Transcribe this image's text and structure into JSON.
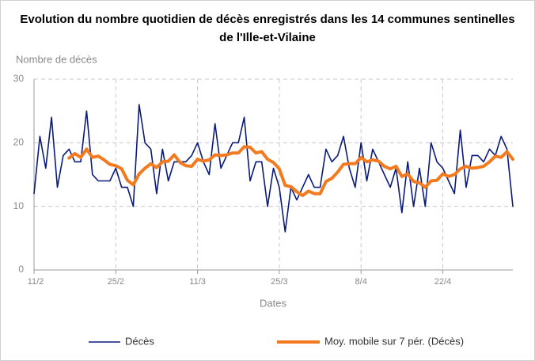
{
  "chart_data": {
    "type": "line",
    "title": [
      "Evolution du nombre quotidien de décès enregistrés dans les 14 communes sentinelles",
      "de l'Ille-et-Vilaine"
    ],
    "y_label": "Nombre de décès",
    "x_label": "Dates",
    "categories": [
      "11/2",
      null,
      null,
      null,
      null,
      null,
      null,
      null,
      null,
      null,
      null,
      null,
      null,
      null,
      "25/2",
      null,
      null,
      null,
      null,
      null,
      null,
      null,
      null,
      null,
      null,
      null,
      null,
      null,
      "11/3",
      null,
      null,
      null,
      null,
      null,
      null,
      null,
      null,
      null,
      null,
      null,
      null,
      null,
      "25/3",
      null,
      null,
      null,
      null,
      null,
      null,
      null,
      null,
      null,
      null,
      null,
      null,
      null,
      "8/4",
      null,
      null,
      null,
      null,
      null,
      null,
      null,
      null,
      null,
      null,
      null,
      null,
      null,
      "22/4",
      null,
      null,
      null,
      null,
      null,
      null,
      null,
      null,
      null,
      null,
      null,
      null
    ],
    "series": [
      {
        "name": "Décès",
        "color": "#0a1a7a",
        "width": 1.6,
        "values": [
          12,
          21,
          16,
          24,
          13,
          18,
          19,
          17,
          17,
          25,
          15,
          14,
          14,
          14,
          16,
          13,
          13,
          10,
          26,
          20,
          19,
          12,
          19,
          14,
          17,
          17,
          17,
          18,
          20,
          17,
          15,
          23,
          16,
          18,
          20,
          20,
          24,
          14,
          17,
          17,
          10,
          16,
          13,
          6,
          13,
          11,
          13,
          15,
          13,
          13,
          19,
          17,
          18,
          21,
          16,
          13,
          20,
          14,
          19,
          17,
          15,
          13,
          16,
          9,
          17,
          10,
          16,
          10,
          20,
          17,
          16,
          14,
          12,
          22,
          13,
          18,
          18,
          17,
          19,
          18,
          21,
          19,
          10
        ]
      },
      {
        "name": "Moy. mobile sur 7 pér. (Décès)",
        "color": "#f47a1f",
        "width": 4,
        "values": [
          null,
          null,
          null,
          null,
          null,
          null,
          17.6,
          18.3,
          17.7,
          19.0,
          17.7,
          17.9,
          17.3,
          16.6,
          16.4,
          15.9,
          14.1,
          13.4,
          15.1,
          16.0,
          16.7,
          16.1,
          17.0,
          17.1,
          18.1,
          16.9,
          16.4,
          16.3,
          17.4,
          17.1,
          17.3,
          18.1,
          18.0,
          18.1,
          18.4,
          18.4,
          19.4,
          19.3,
          18.4,
          18.6,
          17.4,
          16.9,
          15.9,
          13.3,
          13.1,
          12.3,
          11.7,
          12.4,
          12.0,
          12.0,
          13.9,
          14.4,
          15.4,
          16.6,
          16.7,
          16.7,
          17.7,
          17.0,
          17.3,
          17.1,
          16.3,
          15.9,
          16.3,
          14.7,
          15.1,
          13.9,
          13.7,
          13.0,
          14.0,
          14.1,
          15.1,
          14.7,
          15.0,
          15.9,
          16.3,
          16.0,
          16.1,
          16.3,
          17.0,
          17.9,
          17.7,
          18.6,
          17.4
        ]
      }
    ],
    "ylim": [
      0,
      30
    ],
    "yticks": [
      0,
      10,
      20,
      30
    ],
    "grid": true,
    "legend": "bottom"
  }
}
